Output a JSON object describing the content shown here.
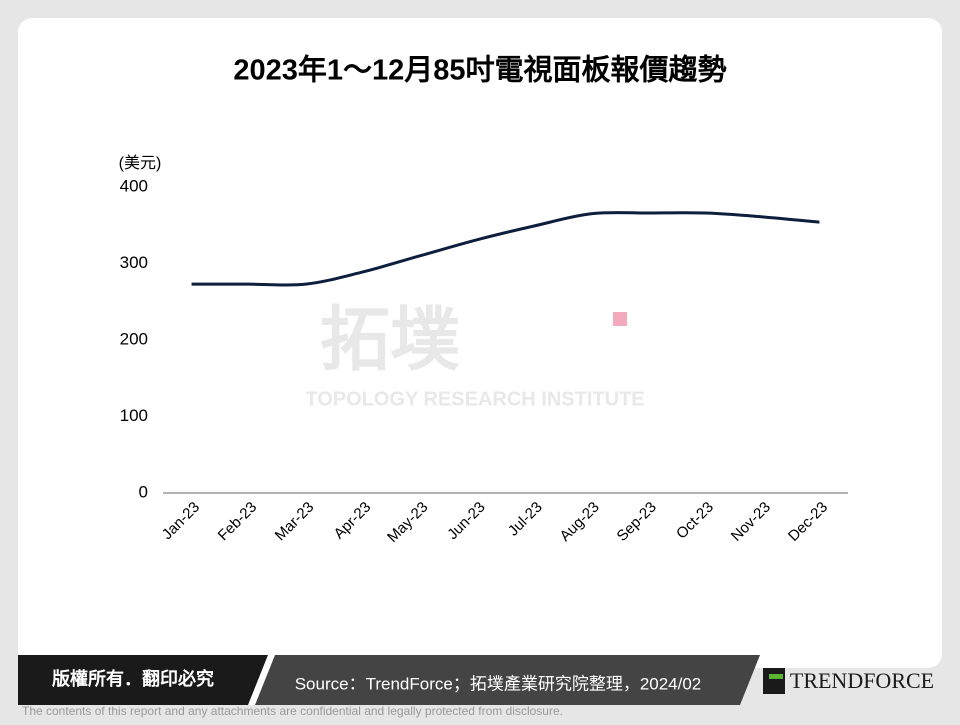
{
  "chart_data": {
    "type": "line",
    "title": "2023年1～12月85吋電視面板報價趨勢",
    "y_unit": "(美元)",
    "categories": [
      "Jan-23",
      "Feb-23",
      "Mar-23",
      "Apr-23",
      "May-23",
      "Jun-23",
      "Jul-23",
      "Aug-23",
      "Sep-23",
      "Oct-23",
      "Nov-23",
      "Dec-23"
    ],
    "series": [
      {
        "color": "#0d1f3c",
        "values": [
          273,
          273,
          273,
          289,
          310,
          331,
          349,
          365,
          366,
          366,
          361,
          354
        ]
      }
    ],
    "ylim": [
      0,
      400
    ],
    "yticks": [
      0,
      100,
      200,
      300,
      400
    ],
    "grid": false,
    "watermark": {
      "name": "拓墣",
      "subtitle": "TOPOLOGY RESEARCH INSTITUTE"
    }
  },
  "footer": {
    "copyright": "版權所有．翻印必究",
    "source": "Source：TrendForce；拓墣產業研究院整理，2024/02",
    "logo": "TRENDFORCE",
    "disclaimer": "The contents of this report and any attachments are confidential and legally protected from disclosure."
  }
}
